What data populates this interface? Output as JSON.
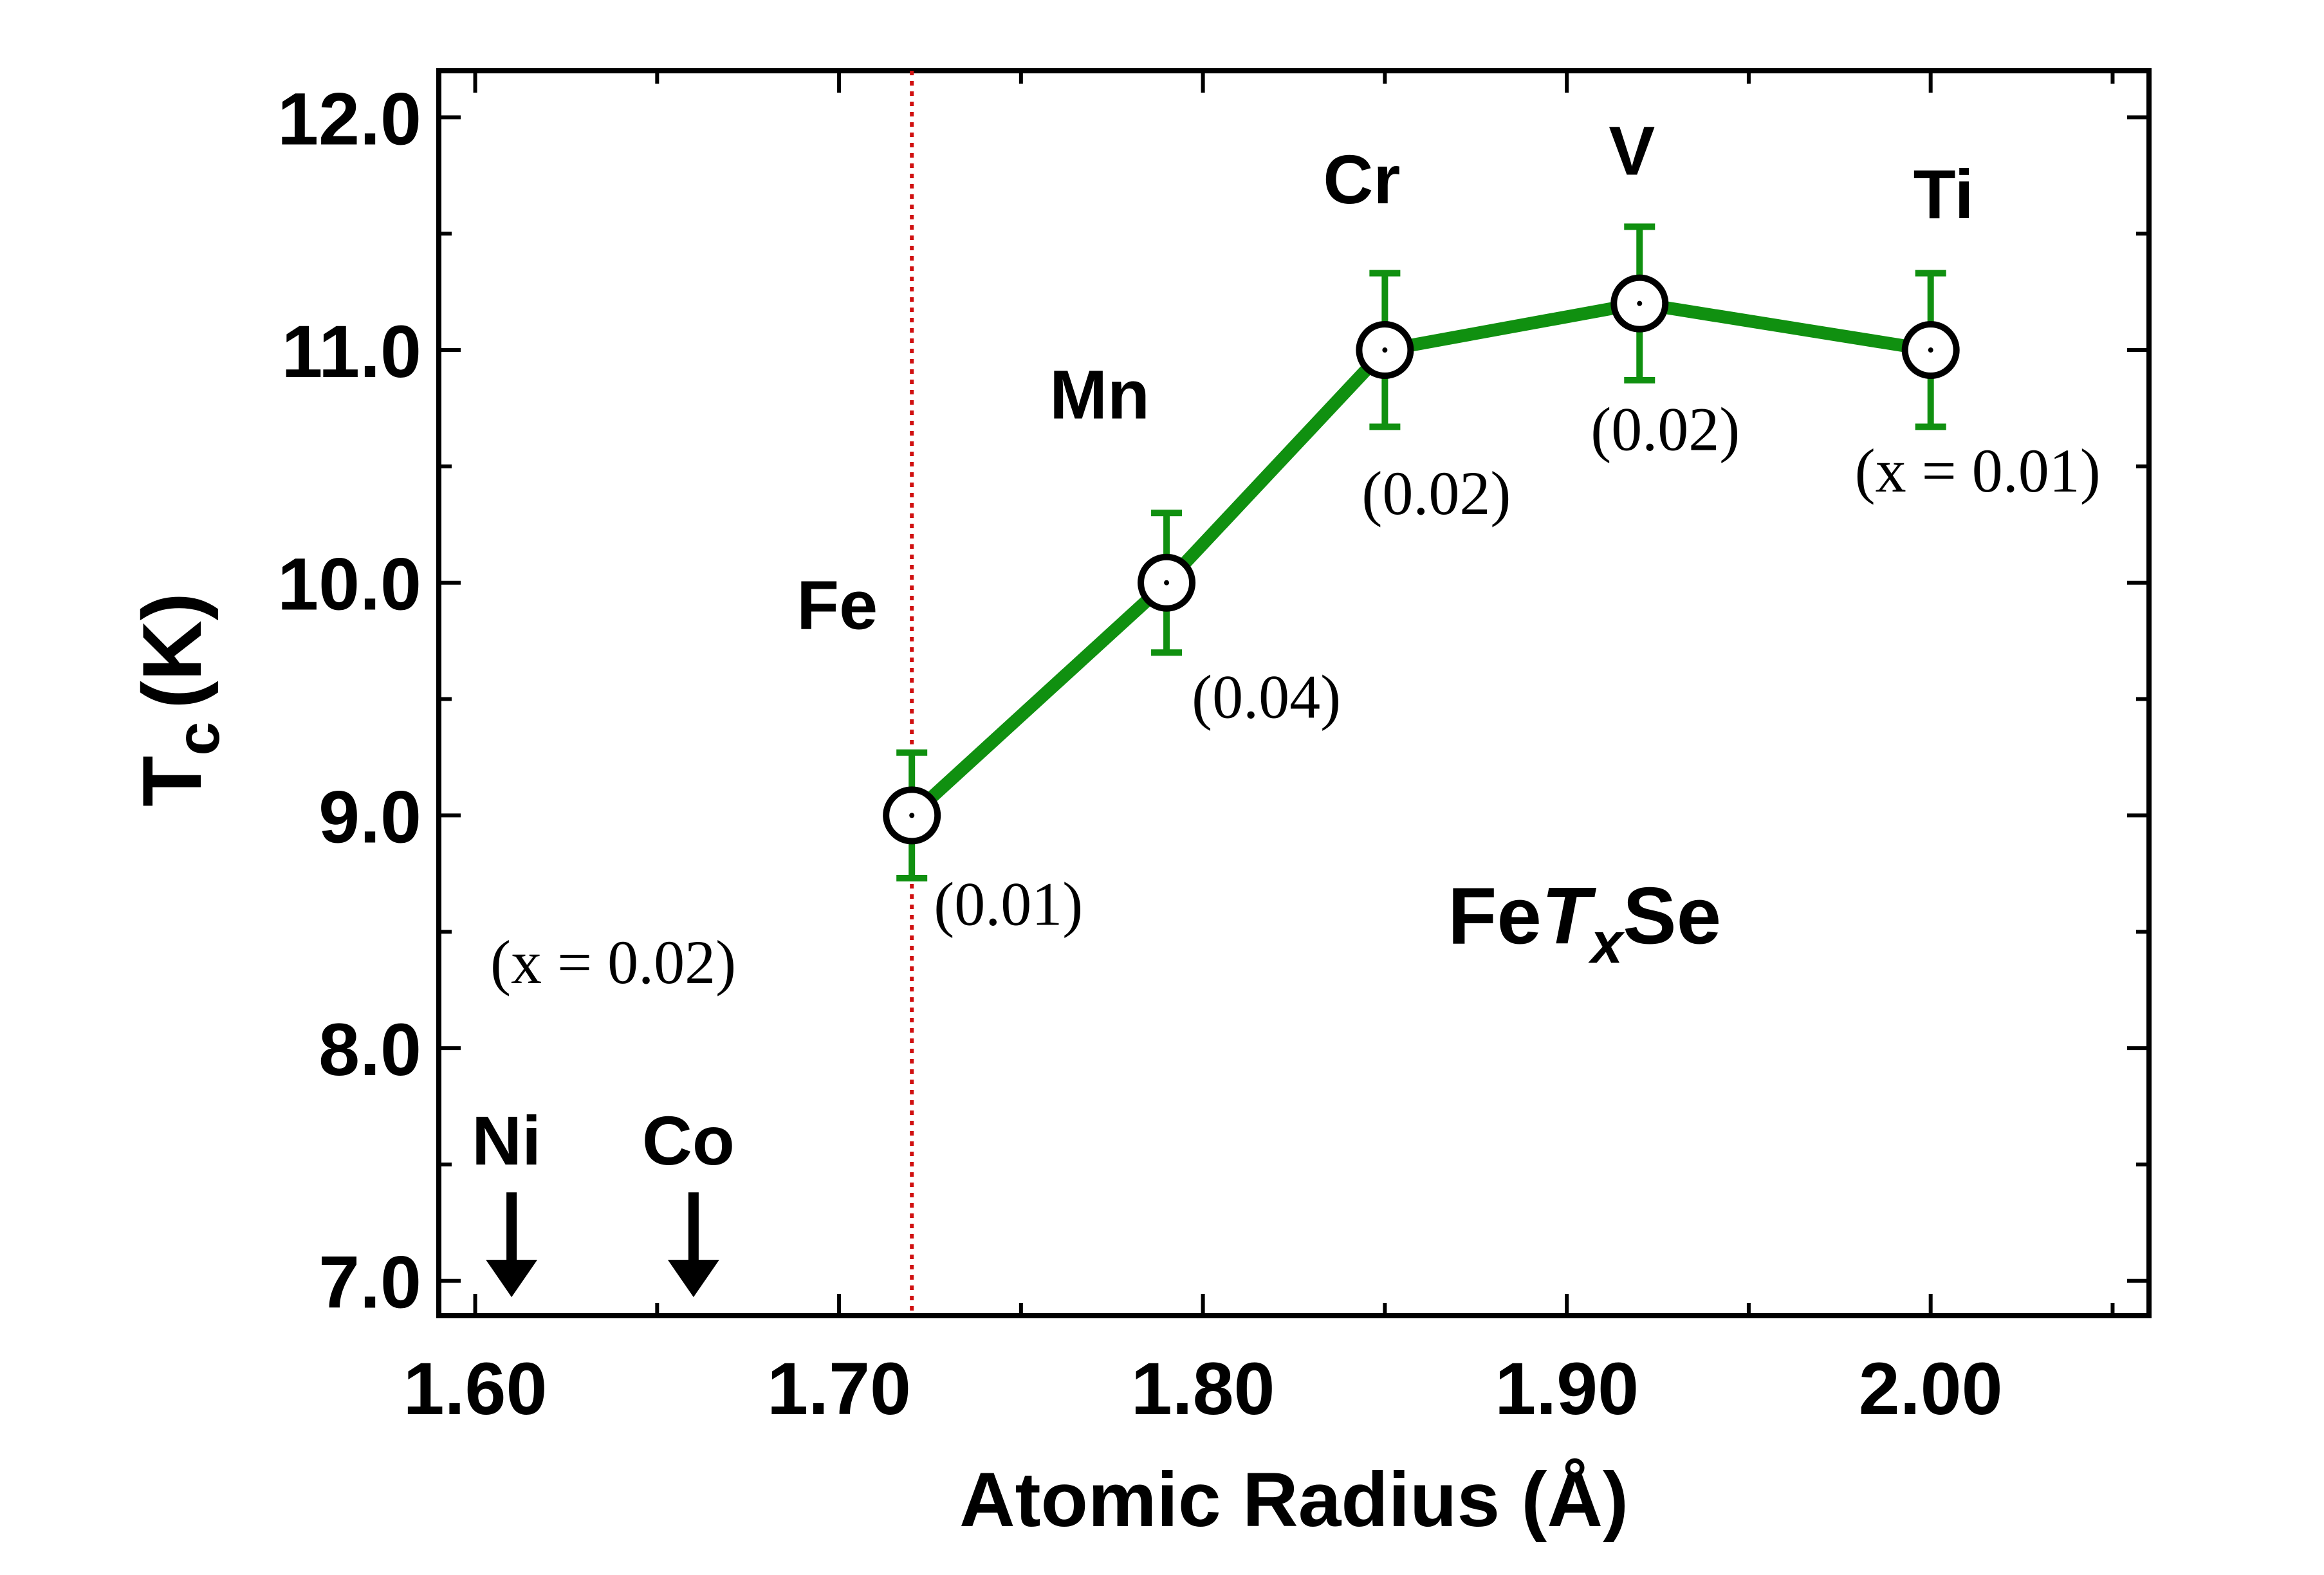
{
  "chart_data": {
    "type": "line",
    "xlabel": "Atomic Radius (Å)",
    "ylabel": {
      "main": "T",
      "sub": "c",
      "unit": "(K)"
    },
    "xlim": [
      1.59,
      2.06
    ],
    "ylim": [
      6.85,
      12.2
    ],
    "x_ticks": [
      "1.60",
      "1.70",
      "1.80",
      "1.90",
      "2.00"
    ],
    "x_tick_values": [
      1.6,
      1.7,
      1.8,
      1.9,
      2.0
    ],
    "y_ticks": [
      "7.0",
      "8.0",
      "9.0",
      "10.0",
      "11.0",
      "12.0"
    ],
    "y_tick_values": [
      7.0,
      8.0,
      9.0,
      10.0,
      11.0,
      12.0
    ],
    "series_color": "#109010",
    "reference_line": {
      "x": 1.72,
      "color": "#d01010"
    },
    "points": [
      {
        "element": "Fe",
        "x": 1.72,
        "y": 9.0,
        "err": 0.27,
        "conc": "(0.01)"
      },
      {
        "element": "Mn",
        "x": 1.79,
        "y": 10.0,
        "err": 0.3,
        "conc": "(0.04)"
      },
      {
        "element": "Cr",
        "x": 1.85,
        "y": 11.0,
        "err": 0.33,
        "conc": "(0.02)"
      },
      {
        "element": "V",
        "x": 1.92,
        "y": 11.2,
        "err": 0.33,
        "conc": "(0.02)"
      },
      {
        "element": "Ti",
        "x": 2.0,
        "y": 11.0,
        "err": 0.33,
        "conc": "(x = 0.01)"
      }
    ],
    "markers": [
      {
        "element": "Ni",
        "x": 1.61
      },
      {
        "element": "Co",
        "x": 1.66
      }
    ],
    "marker_conc": "(x = 0.02)",
    "formula": {
      "part1": "Fe",
      "part2": "T",
      "sub": "x",
      "part3": "Se"
    }
  }
}
